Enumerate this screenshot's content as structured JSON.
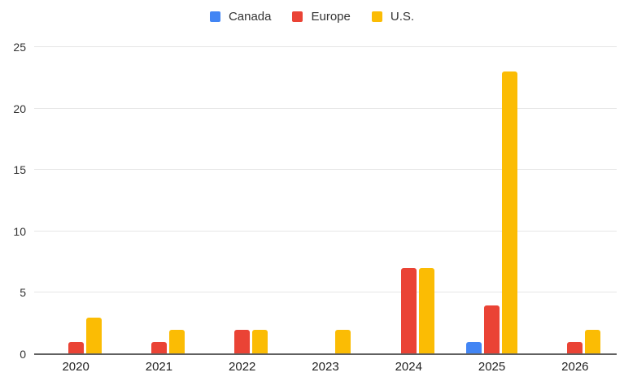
{
  "chart_data": {
    "type": "bar",
    "title": "",
    "xlabel": "",
    "ylabel": "",
    "categories": [
      "2020",
      "2021",
      "2022",
      "2023",
      "2024",
      "2025",
      "2026"
    ],
    "series": [
      {
        "name": "Canada",
        "color": "#4285F4",
        "values": [
          0,
          0,
          0,
          0,
          0,
          1,
          0
        ]
      },
      {
        "name": "Europe",
        "color": "#EA4335",
        "values": [
          1,
          1,
          2,
          0,
          7,
          4,
          1
        ]
      },
      {
        "name": "U.S.",
        "color": "#FBBC04",
        "values": [
          3,
          2,
          2,
          2,
          7,
          23,
          2
        ]
      }
    ],
    "ylim": [
      0,
      25
    ],
    "yticks": [
      0,
      5,
      10,
      15,
      20,
      25
    ],
    "grid": true,
    "legend_position": "top"
  },
  "colors": {
    "background": "#ffffff",
    "gridline": "#e6e6e6",
    "axis_line": "#616161",
    "text": "#333333"
  }
}
